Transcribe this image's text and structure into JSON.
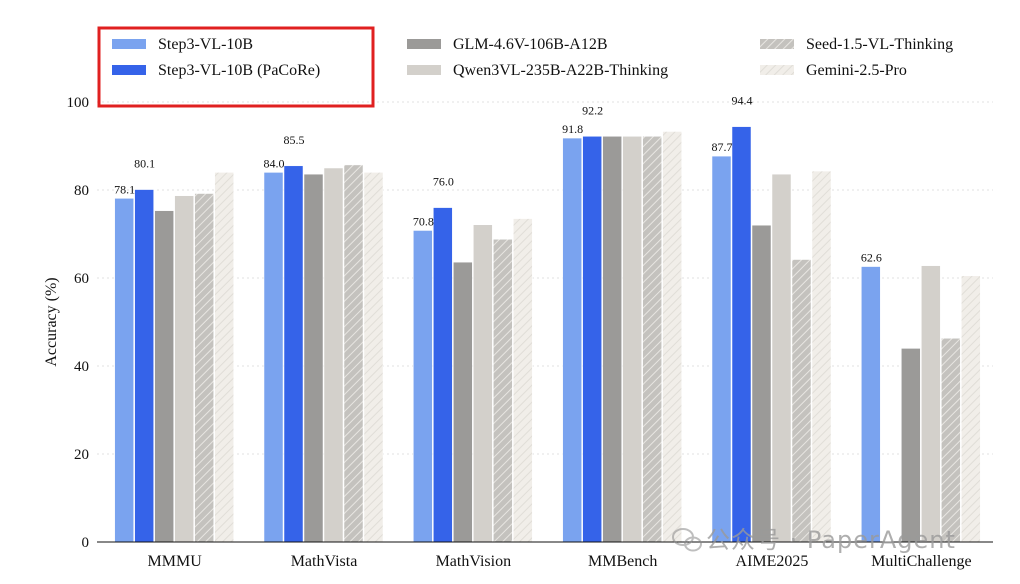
{
  "chart_data": {
    "type": "bar",
    "title": "",
    "xlabel": "",
    "ylabel": "Accuracy (%)",
    "ylim": [
      0,
      100
    ],
    "yticks": [
      0,
      20,
      40,
      60,
      80,
      100
    ],
    "grid": true,
    "legend_position": "top",
    "categories": [
      "MMMU",
      "MathVista",
      "MathVision",
      "MMBench",
      "AIME2025",
      "MultiChallenge"
    ],
    "series": [
      {
        "name": "Step3-VL-10B",
        "color": "#7aa3ef",
        "pattern": "solid",
        "values": [
          78.1,
          84.0,
          70.8,
          91.8,
          87.7,
          62.6
        ],
        "labels": [
          "78.1",
          "84.0",
          "70.8",
          "91.8",
          "87.7",
          "62.6"
        ]
      },
      {
        "name": "Step3-VL-10B (PaCoRe)",
        "color": "#3563e9",
        "pattern": "solid",
        "values": [
          80.1,
          85.5,
          76.0,
          92.2,
          94.4,
          null
        ],
        "labels": [
          "80.1",
          "85.5",
          "76.0",
          "92.2",
          "94.4",
          null
        ]
      },
      {
        "name": "GLM-4.6V-106B-A12B",
        "color": "#9b9a98",
        "pattern": "solid",
        "values": [
          75.3,
          83.6,
          63.6,
          92.2,
          72.0,
          44.0
        ],
        "labels": [
          null,
          null,
          null,
          null,
          null,
          null
        ]
      },
      {
        "name": "Qwen3VL-235B-A22B-Thinking",
        "color": "#d3d0cb",
        "pattern": "solid",
        "values": [
          78.7,
          85.0,
          72.1,
          92.2,
          83.6,
          62.8
        ],
        "labels": [
          null,
          null,
          null,
          null,
          null,
          null
        ]
      },
      {
        "name": "Seed-1.5-VL-Thinking",
        "color": "#c4c2be",
        "pattern": "hatch-dark",
        "values": [
          79.2,
          85.7,
          68.8,
          92.2,
          64.2,
          46.3
        ],
        "labels": [
          null,
          null,
          null,
          null,
          null,
          null
        ]
      },
      {
        "name": "Gemini-2.5-Pro",
        "color": "#eeebe6",
        "pattern": "hatch-light",
        "values": [
          84.0,
          84.0,
          73.5,
          93.3,
          84.3,
          60.5
        ],
        "labels": [
          null,
          null,
          null,
          null,
          null,
          null
        ]
      }
    ]
  },
  "watermark": {
    "text": "公众号 · PaperAgent",
    "icon": "wechat-icon"
  }
}
